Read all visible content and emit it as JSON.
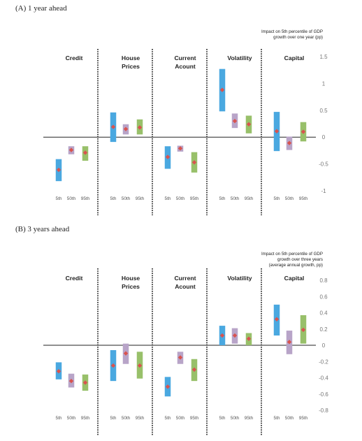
{
  "panels": [
    {
      "title": "(A) 1 year ahead",
      "note": [
        "Impact on 5th percentile of GDP",
        "growth over one year (pp)"
      ]
    },
    {
      "title": "(B) 3 years ahead",
      "note": [
        "Impact on 5th percentile of GDP",
        "growth over three years",
        "(average annual growth, pp)"
      ]
    }
  ],
  "colors": {
    "p5": "#4aa8e0",
    "p50": "#b8a4c8",
    "p95": "#98c06a",
    "marker": "#d9534f"
  },
  "chart_data": [
    {
      "type": "range-bar",
      "title": "(A) 1 year ahead",
      "ylabel": "Impact on 5th percentile of GDP growth over one year (pp)",
      "ylim": [
        -1,
        1.5
      ],
      "yticks": [
        "-1",
        "-0.5",
        "0",
        "0.5",
        "1",
        "1.5"
      ],
      "ytick_values": [
        -1,
        -0.5,
        0,
        0.5,
        1,
        1.5
      ],
      "percentiles": [
        "5th",
        "50th",
        "95th"
      ],
      "groups": [
        {
          "name": "Credit",
          "points": [
            {
              "low": -0.82,
              "high": -0.41,
              "mid": -0.61
            },
            {
              "low": -0.32,
              "high": -0.17,
              "mid": -0.24
            },
            {
              "low": -0.44,
              "high": -0.17,
              "mid": -0.29
            }
          ]
        },
        {
          "name": "House Prices",
          "points": [
            {
              "low": -0.09,
              "high": 0.46,
              "mid": 0.19
            },
            {
              "low": 0.05,
              "high": 0.24,
              "mid": 0.15
            },
            {
              "low": 0.05,
              "high": 0.33,
              "mid": 0.18
            }
          ]
        },
        {
          "name": "Current Acount",
          "points": [
            {
              "low": -0.59,
              "high": -0.17,
              "mid": -0.37
            },
            {
              "low": -0.27,
              "high": -0.16,
              "mid": -0.21
            },
            {
              "low": -0.66,
              "high": -0.28,
              "mid": -0.47
            }
          ]
        },
        {
          "name": "Volatility",
          "points": [
            {
              "low": 0.48,
              "high": 1.27,
              "mid": 0.88
            },
            {
              "low": 0.17,
              "high": 0.44,
              "mid": 0.3
            },
            {
              "low": 0.07,
              "high": 0.4,
              "mid": 0.24
            }
          ]
        },
        {
          "name": "Capital",
          "points": [
            {
              "low": -0.26,
              "high": 0.47,
              "mid": 0.11
            },
            {
              "low": -0.24,
              "high": 0.01,
              "mid": -0.11
            },
            {
              "low": -0.08,
              "high": 0.28,
              "mid": 0.1
            }
          ]
        }
      ]
    },
    {
      "type": "range-bar",
      "title": "(B) 3 years ahead",
      "ylabel": "Impact on 5th percentile of GDP growth over three years (average annual growth, pp)",
      "ylim": [
        -0.8,
        0.8
      ],
      "yticks": [
        "-0.8",
        "-0.6",
        "-0.4",
        "-0.2",
        "0",
        "0.2",
        "0.4",
        "0.6",
        "0.8"
      ],
      "ytick_values": [
        -0.8,
        -0.6,
        -0.4,
        -0.2,
        0,
        0.2,
        0.4,
        0.6,
        0.8
      ],
      "percentiles": [
        "5th",
        "50th",
        "95th"
      ],
      "groups": [
        {
          "name": "Credit",
          "points": [
            {
              "low": -0.42,
              "high": -0.21,
              "mid": -0.32
            },
            {
              "low": -0.52,
              "high": -0.35,
              "mid": -0.44
            },
            {
              "low": -0.56,
              "high": -0.36,
              "mid": -0.46
            }
          ]
        },
        {
          "name": "House Prices",
          "points": [
            {
              "low": -0.44,
              "high": -0.06,
              "mid": -0.25
            },
            {
              "low": -0.23,
              "high": 0.02,
              "mid": -0.1
            },
            {
              "low": -0.41,
              "high": -0.08,
              "mid": -0.25
            }
          ]
        },
        {
          "name": "Current Acount",
          "points": [
            {
              "low": -0.63,
              "high": -0.39,
              "mid": -0.51
            },
            {
              "low": -0.23,
              "high": -0.08,
              "mid": -0.15
            },
            {
              "low": -0.44,
              "high": -0.17,
              "mid": -0.3
            }
          ]
        },
        {
          "name": "Volatility",
          "points": [
            {
              "low": 0.0,
              "high": 0.24,
              "mid": 0.12
            },
            {
              "low": 0.02,
              "high": 0.21,
              "mid": 0.12
            },
            {
              "low": 0.0,
              "high": 0.15,
              "mid": 0.08
            }
          ]
        },
        {
          "name": "Capital",
          "points": [
            {
              "low": 0.12,
              "high": 0.5,
              "mid": 0.32
            },
            {
              "low": -0.11,
              "high": 0.18,
              "mid": 0.04
            },
            {
              "low": 0.02,
              "high": 0.37,
              "mid": 0.19
            }
          ]
        }
      ]
    }
  ]
}
